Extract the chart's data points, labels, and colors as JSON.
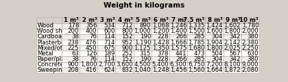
{
  "title": "Weight in kilograms",
  "col_headers": [
    "1 m³",
    "2 m³",
    "3 m³",
    "4 m³",
    "5 m³",
    "6 m³",
    "7 m³",
    "7.5 m³",
    "8 m³",
    "9 m³",
    "10 m³"
  ],
  "rows": [
    [
      "Wood",
      "178",
      "356",
      "534",
      "712",
      "890",
      "1,068",
      "1,246",
      "1,335",
      "1,424",
      "1,602",
      "1,780"
    ],
    [
      "Wood sheet",
      "200",
      "400",
      "600",
      "800",
      "1,000",
      "1,200",
      "1,400",
      "1,500",
      "1,600",
      "1,800",
      "2,000"
    ],
    [
      "Cardboard",
      "38",
      "76",
      "114",
      "152",
      "190",
      "228",
      "266",
      "285",
      "304",
      "342",
      "380"
    ],
    [
      "Plasterboard",
      "238",
      "476",
      "714",
      "952",
      "1,190",
      "1,428",
      "1,666",
      "1,785",
      "1,904",
      "2,142",
      "2,380"
    ],
    [
      "Mixed/other",
      "225",
      "450",
      "675",
      "900",
      "1,125",
      "1,350",
      "1,575",
      "1,680",
      "1,800",
      "2,025",
      "2,250"
    ],
    [
      "Metal",
      "63",
      "126",
      "189",
      "252",
      "315",
      "378",
      "441",
      "473",
      "504",
      "567",
      "630"
    ],
    [
      "Paper/plastic",
      "38",
      "76",
      "114",
      "152",
      "190",
      "228",
      "266",
      "285",
      "304",
      "342",
      "380"
    ],
    [
      "Concrete",
      "900",
      "1,800",
      "2,700",
      "3,600",
      "4,500",
      "5,400",
      "6,300",
      "6,750",
      "7,200",
      "8,100",
      "9,000"
    ],
    [
      "Sweepings",
      "208",
      "416",
      "624",
      "832",
      "1,040",
      "1,248",
      "1,456",
      "1,560",
      "1,664",
      "1,872",
      "2,080"
    ]
  ],
  "bg_header": "#d4d0c8",
  "bg_odd": "#f0eeea",
  "bg_even": "#ffffff",
  "text_color": "#000000",
  "border_color": "#b0a898",
  "font_size": 6.2,
  "header_font_size": 6.2,
  "title_font_size": 7.5,
  "fig_w": 4.2,
  "fig_h": 1.2,
  "dpi": 100
}
